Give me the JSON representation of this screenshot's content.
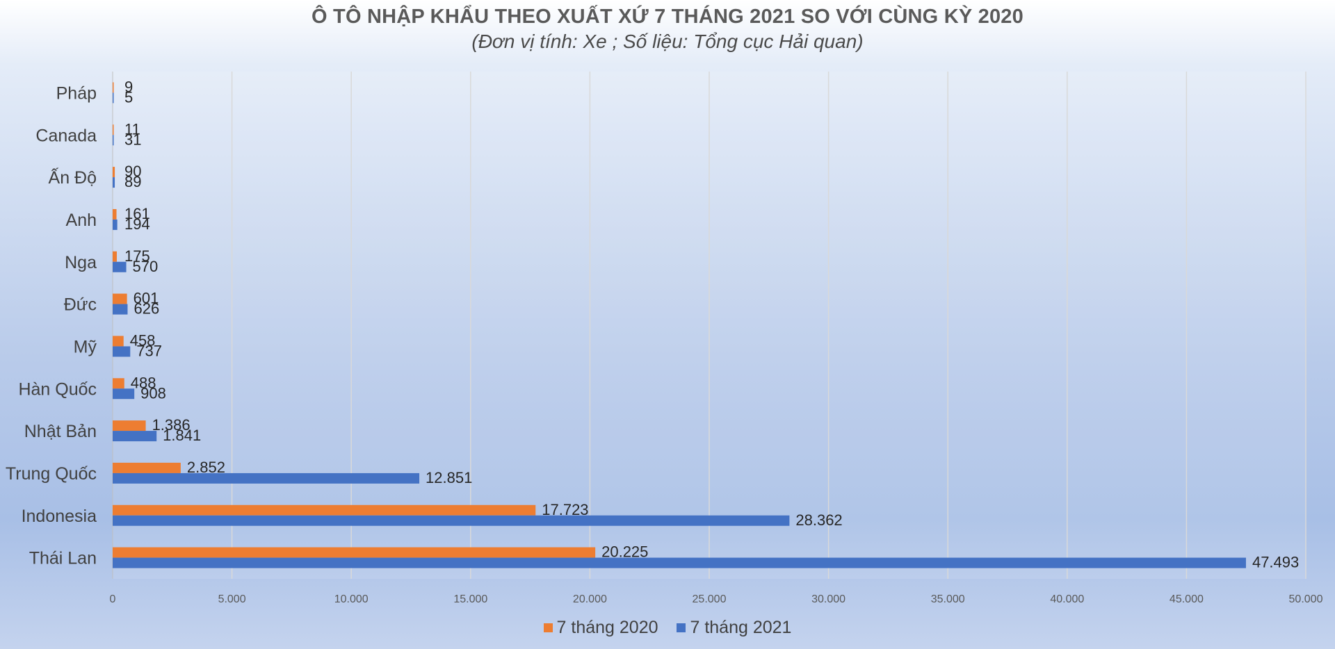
{
  "colors": {
    "series_2020": "#ed7d31",
    "series_2021": "#4472c4",
    "grid": "#d9d9d9"
  },
  "chart_data": {
    "type": "bar",
    "orientation": "horizontal",
    "title": "Ô TÔ NHẬP KHẨU THEO XUẤT XỨ 7 THÁNG 2021 SO VỚI CÙNG KỲ 2020",
    "subtitle": "(Đơn vị tính: Xe ; Số liệu: Tổng cục Hải quan)",
    "categories": [
      "Pháp",
      "Canada",
      "Ấn Độ",
      "Anh",
      "Nga",
      "Đức",
      "Mỹ",
      "Hàn Quốc",
      "Nhật Bản",
      "Trung Quốc",
      "Indonesia",
      "Thái Lan"
    ],
    "series": [
      {
        "name": "7 tháng 2020",
        "values": [
          9,
          11,
          90,
          161,
          175,
          601,
          458,
          488,
          1386,
          2852,
          17723,
          20225
        ],
        "labels": [
          "9",
          "11",
          "90",
          "161",
          "175",
          "601",
          "458",
          "488",
          "1.386",
          "2.852",
          "17.723",
          "20.225"
        ]
      },
      {
        "name": "7 tháng 2021",
        "values": [
          5,
          31,
          89,
          194,
          570,
          626,
          737,
          908,
          1841,
          12851,
          28362,
          47493
        ],
        "labels": [
          "5",
          "31",
          "89",
          "194",
          "570",
          "626",
          "737",
          "908",
          "1.841",
          "12.851",
          "28.362",
          "47.493"
        ]
      }
    ],
    "xlim": [
      0,
      50000
    ],
    "ticks": [
      0,
      5000,
      10000,
      15000,
      20000,
      25000,
      30000,
      35000,
      40000,
      45000,
      50000
    ],
    "tick_labels": [
      "0",
      "5.000",
      "10.000",
      "15.000",
      "20.000",
      "25.000",
      "30.000",
      "35.000",
      "40.000",
      "45.000",
      "50.000"
    ],
    "grid": true,
    "legend": "bottom"
  }
}
